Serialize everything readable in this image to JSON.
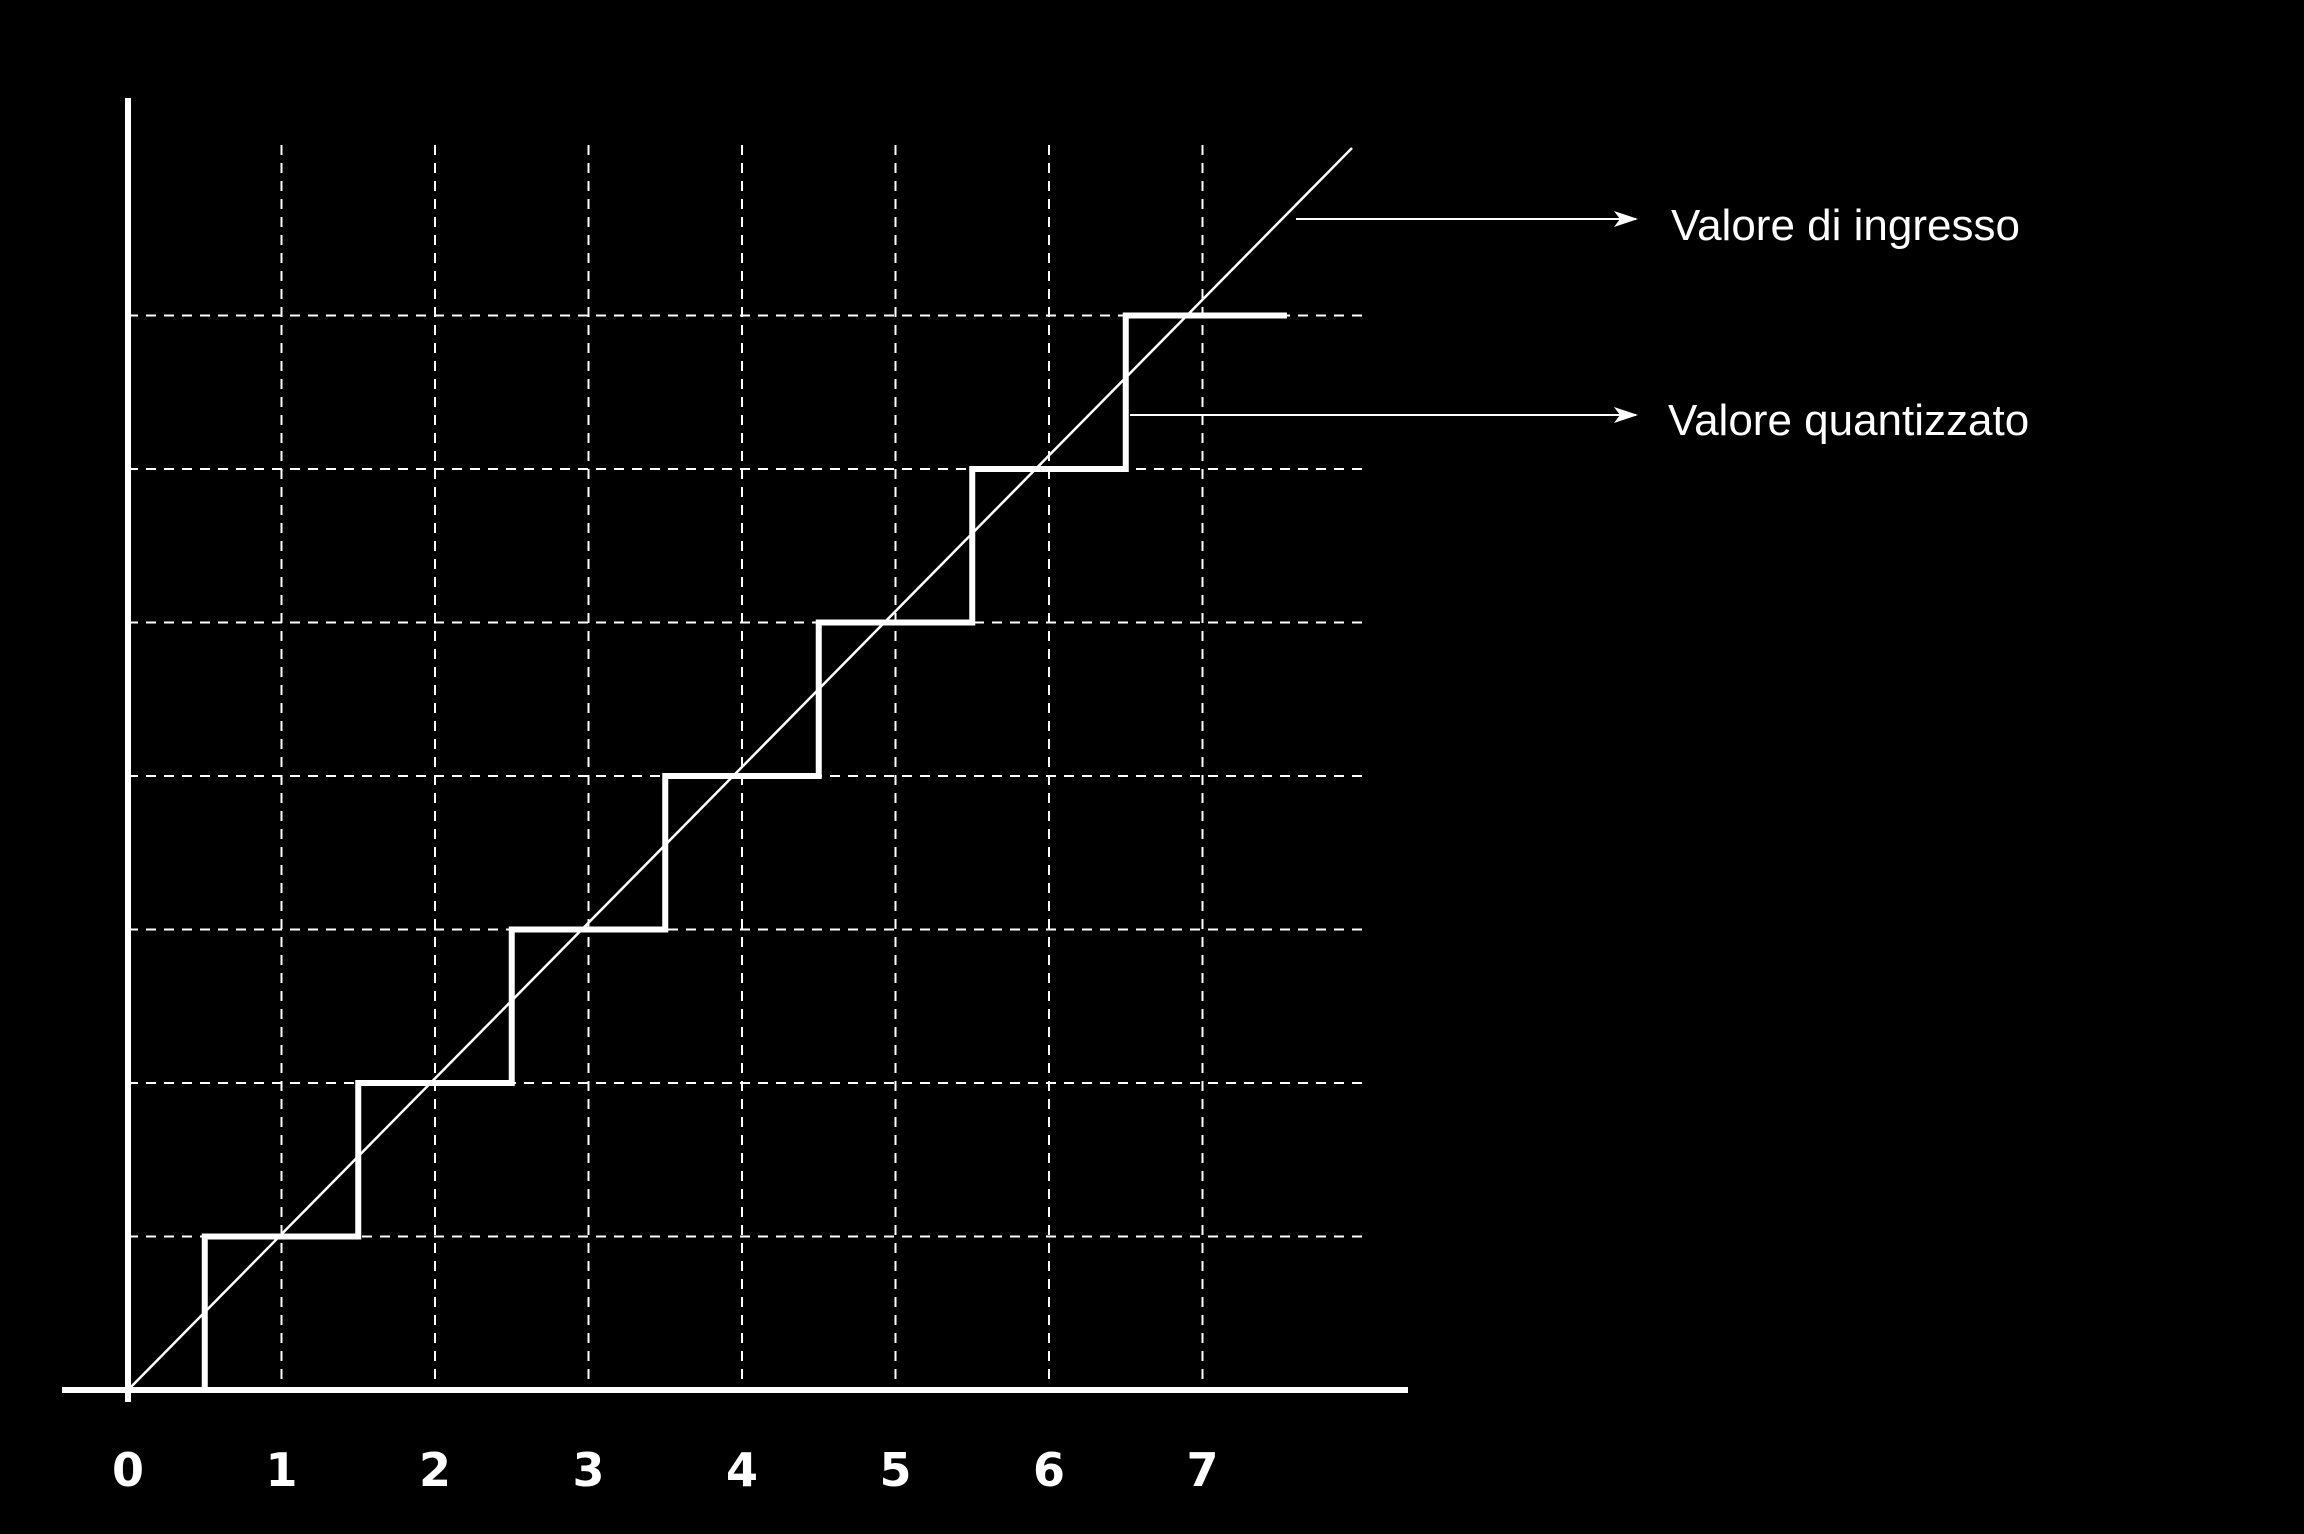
{
  "chart_data": {
    "type": "line",
    "title": "",
    "xlabel": "",
    "ylabel": "",
    "xlim": [
      0,
      8.5
    ],
    "ylim": [
      0,
      7.8
    ],
    "grid": true,
    "x_ticks": [
      "0",
      "1",
      "2",
      "3",
      "4",
      "5",
      "6",
      "7"
    ],
    "y_gridlines": [
      1,
      2,
      3,
      4,
      5,
      6,
      7
    ],
    "x_gridlines": [
      1,
      2,
      3,
      4,
      5,
      6,
      7
    ],
    "series": [
      {
        "name": "Valore di ingresso",
        "style": "thin-line",
        "x": [
          0,
          8.0
        ],
        "y": [
          0,
          8.0
        ]
      },
      {
        "name": "Valore quantizzato",
        "style": "staircase",
        "x": [
          0.5,
          0.5,
          1.5,
          1.5,
          2.5,
          2.5,
          3.5,
          3.5,
          4.5,
          4.5,
          5.5,
          5.5,
          6.5,
          6.5,
          7.55
        ],
        "y": [
          0,
          1,
          1,
          2,
          2,
          3,
          3,
          4,
          4,
          5,
          5,
          6,
          6,
          7,
          7
        ]
      }
    ],
    "legend": {
      "placement": "right",
      "entries": [
        {
          "label": "Valore di ingresso",
          "series": 0
        },
        {
          "label": "Valore quantizzato",
          "series": 1
        }
      ]
    },
    "colors": {
      "background": "#000000",
      "foreground": "#ffffff"
    }
  }
}
